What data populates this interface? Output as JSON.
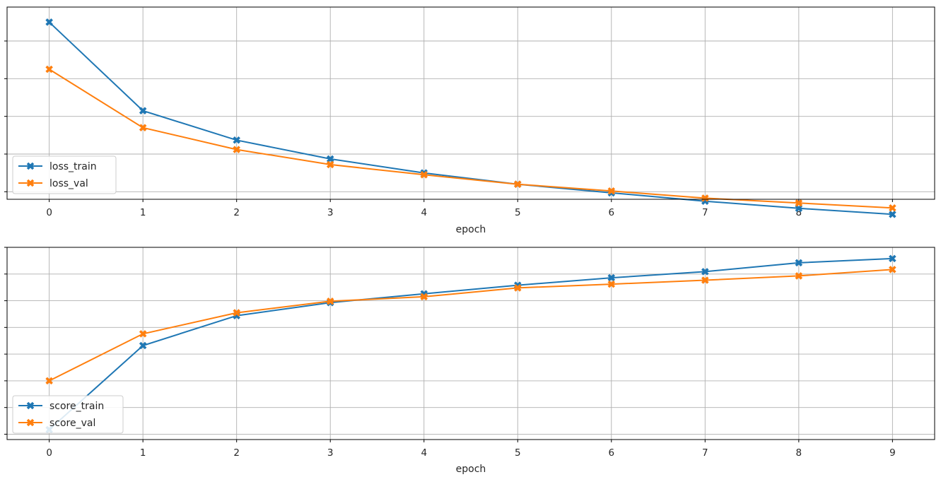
{
  "chart_data": [
    {
      "type": "line",
      "title": "",
      "xlabel": "epoch",
      "ylabel": "",
      "categories": [
        "0",
        "1",
        "2",
        "3",
        "4",
        "5",
        "6",
        "7",
        "8",
        "9"
      ],
      "x": [
        0,
        1,
        2,
        3,
        4,
        5,
        6,
        7,
        8,
        9
      ],
      "xlim": [
        -0.45,
        9.45
      ],
      "ylim": [
        0.43,
        0.94
      ],
      "yticks": [
        0.45,
        0.55,
        0.65,
        0.75,
        0.85
      ],
      "y_tick_labels_visible": false,
      "grid": true,
      "legend": "lower-left",
      "series": [
        {
          "name": "loss_train",
          "color": "#1f77b4",
          "marker": "x",
          "values": [
            0.9,
            0.665,
            0.587,
            0.537,
            0.5,
            0.47,
            0.447,
            0.425,
            0.406,
            0.39
          ]
        },
        {
          "name": "loss_val",
          "color": "#ff7f0e",
          "marker": "x",
          "values": [
            0.775,
            0.62,
            0.562,
            0.522,
            0.495,
            0.47,
            0.452,
            0.433,
            0.42,
            0.407
          ]
        }
      ]
    },
    {
      "type": "line",
      "title": "",
      "xlabel": "epoch",
      "ylabel": "",
      "categories": [
        "0",
        "1",
        "2",
        "3",
        "4",
        "5",
        "6",
        "7",
        "8",
        "9"
      ],
      "x": [
        0,
        1,
        2,
        3,
        4,
        5,
        6,
        7,
        8,
        9
      ],
      "xlim": [
        -0.45,
        9.45
      ],
      "ylim": [
        0.28,
        1.0
      ],
      "yticks": [
        0.3,
        0.4,
        0.5,
        0.6,
        0.7,
        0.8,
        0.9,
        1.0
      ],
      "y_tick_labels_visible": false,
      "grid": true,
      "legend": "lower-left",
      "series": [
        {
          "name": "score_train",
          "color": "#1f77b4",
          "marker": "x",
          "values": [
            0.317,
            0.632,
            0.744,
            0.793,
            0.826,
            0.858,
            0.886,
            0.909,
            0.942,
            0.958
          ]
        },
        {
          "name": "score_val",
          "color": "#ff7f0e",
          "marker": "x",
          "values": [
            0.5,
            0.676,
            0.755,
            0.798,
            0.815,
            0.848,
            0.862,
            0.877,
            0.893,
            0.917
          ]
        }
      ]
    }
  ]
}
